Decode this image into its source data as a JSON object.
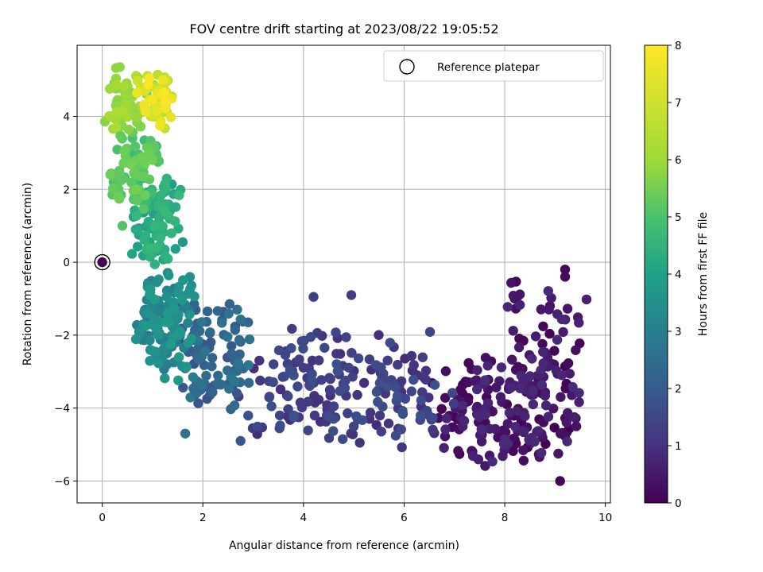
{
  "chart_data": {
    "type": "scatter",
    "title": "FOV centre drift starting at 2023/08/22 19:05:52",
    "xlabel": "Angular distance from reference (arcmin)",
    "ylabel": "Rotation from reference (arcmin)",
    "xlim": [
      -0.5,
      10.1
    ],
    "ylim": [
      -6.6,
      5.95
    ],
    "xticks": [
      0,
      2,
      4,
      6,
      8,
      10
    ],
    "yticks": [
      -6,
      -4,
      -2,
      0,
      2,
      4
    ],
    "xtick_labels": [
      "0",
      "2",
      "4",
      "6",
      "8",
      "10"
    ],
    "ytick_labels": [
      "−6",
      "−4",
      "−2",
      "0",
      "2",
      "4"
    ],
    "grid": true,
    "legend": {
      "position": "top-right",
      "entries": [
        "Reference platepar"
      ]
    },
    "reference_point": {
      "x": 0,
      "y": 0
    },
    "colorbar": {
      "label": "Hours from first FF file",
      "range": [
        0,
        8
      ],
      "ticks": [
        0,
        1,
        2,
        3,
        4,
        5,
        6,
        7,
        8
      ],
      "tick_labels": [
        "0",
        "1",
        "2",
        "3",
        "4",
        "5",
        "6",
        "7",
        "8"
      ],
      "colormap": "viridis"
    },
    "clusters": [
      {
        "hours": [
          0.0,
          1.0
        ],
        "n": 190,
        "x": [
          6.4,
          9.7
        ],
        "y": [
          -5.6,
          -2.4
        ]
      },
      {
        "hours": [
          0.0,
          1.0
        ],
        "n": 45,
        "x": [
          7.8,
          9.7
        ],
        "y": [
          -3.6,
          -0.2
        ]
      },
      {
        "hours": [
          1.0,
          2.0
        ],
        "n": 190,
        "x": [
          2.6,
          7.2
        ],
        "y": [
          -5.2,
          -1.7
        ]
      },
      {
        "hours": [
          2.0,
          3.2
        ],
        "n": 100,
        "x": [
          1.4,
          3.0
        ],
        "y": [
          -4.3,
          -1.0
        ]
      },
      {
        "hours": [
          3.2,
          4.4
        ],
        "n": 130,
        "x": [
          0.6,
          1.9
        ],
        "y": [
          -3.4,
          0.0
        ]
      },
      {
        "hours": [
          4.4,
          5.4
        ],
        "n": 100,
        "x": [
          0.5,
          1.6
        ],
        "y": [
          -0.2,
          2.4
        ]
      },
      {
        "hours": [
          5.4,
          6.3
        ],
        "n": 80,
        "x": [
          0.1,
          1.2
        ],
        "y": [
          1.3,
          3.8
        ]
      },
      {
        "hours": [
          6.3,
          7.0
        ],
        "n": 55,
        "x": [
          0.0,
          0.9
        ],
        "y": [
          3.4,
          5.4
        ]
      },
      {
        "hours": [
          7.0,
          8.0
        ],
        "n": 55,
        "x": [
          0.6,
          1.5
        ],
        "y": [
          3.6,
          5.4
        ]
      }
    ],
    "outliers": [
      {
        "x": 9.1,
        "y": -6.0,
        "hours": 0.1
      },
      {
        "x": 9.2,
        "y": -0.2,
        "hours": 0.15
      },
      {
        "x": 9.2,
        "y": -0.4,
        "hours": 0.2
      },
      {
        "x": 8.2,
        "y": -1.0,
        "hours": 0.3
      },
      {
        "x": 4.95,
        "y": -0.9,
        "hours": 1.4
      },
      {
        "x": 4.2,
        "y": -0.95,
        "hours": 1.5
      },
      {
        "x": 2.75,
        "y": -4.9,
        "hours": 2.2
      },
      {
        "x": 1.65,
        "y": -4.7,
        "hours": 3.0
      },
      {
        "x": 1.6,
        "y": 0.55,
        "hours": 4.3
      },
      {
        "x": 1.25,
        "y": 2.15,
        "hours": 5.2
      },
      {
        "x": 0.4,
        "y": 1.0,
        "hours": 5.8
      },
      {
        "x": 0.35,
        "y": 5.35,
        "hours": 6.6
      }
    ]
  }
}
